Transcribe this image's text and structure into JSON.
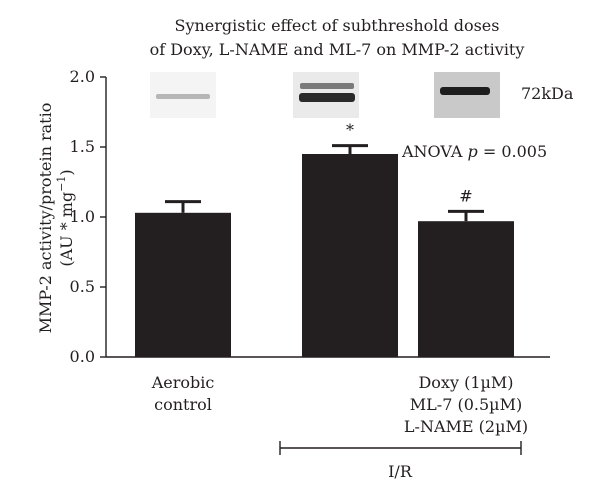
{
  "chart_data": {
    "type": "bar",
    "title_lines": [
      "Synergistic effect of subthreshold doses",
      "of Doxy, L-NAME and ML-7 on MMP-2 activity"
    ],
    "ylabel_line1": "MMP-2 activity/protein ratio",
    "ylabel_line2_prefix": "(AU * mg",
    "ylabel_line2_sup": "−1",
    "ylabel_line2_suffix": ")",
    "ylim": [
      0,
      2.0
    ],
    "yticks": [
      "0.0",
      "0.5",
      "1.0",
      "1.5",
      "2.0"
    ],
    "ytick_values": [
      0,
      0.5,
      1.0,
      1.5,
      2.0
    ],
    "categories": [
      {
        "lines": [
          "Aerobic",
          "control"
        ]
      },
      {
        "lines": []
      },
      {
        "lines": [
          "Doxy (1µM)",
          "ML-7 (0.5µM)",
          "L-NAME (2µM)"
        ]
      }
    ],
    "values": [
      1.03,
      1.45,
      0.97
    ],
    "errors": [
      0.08,
      0.06,
      0.07
    ],
    "bar_color": "#231f20",
    "significance": [
      "",
      "*",
      "#"
    ],
    "anova_label": "ANOVA ",
    "anova_p": "p",
    "anova_value": " = 0.005",
    "blot_label": "72kDa",
    "bracket_label": "I/R",
    "grid": false
  }
}
